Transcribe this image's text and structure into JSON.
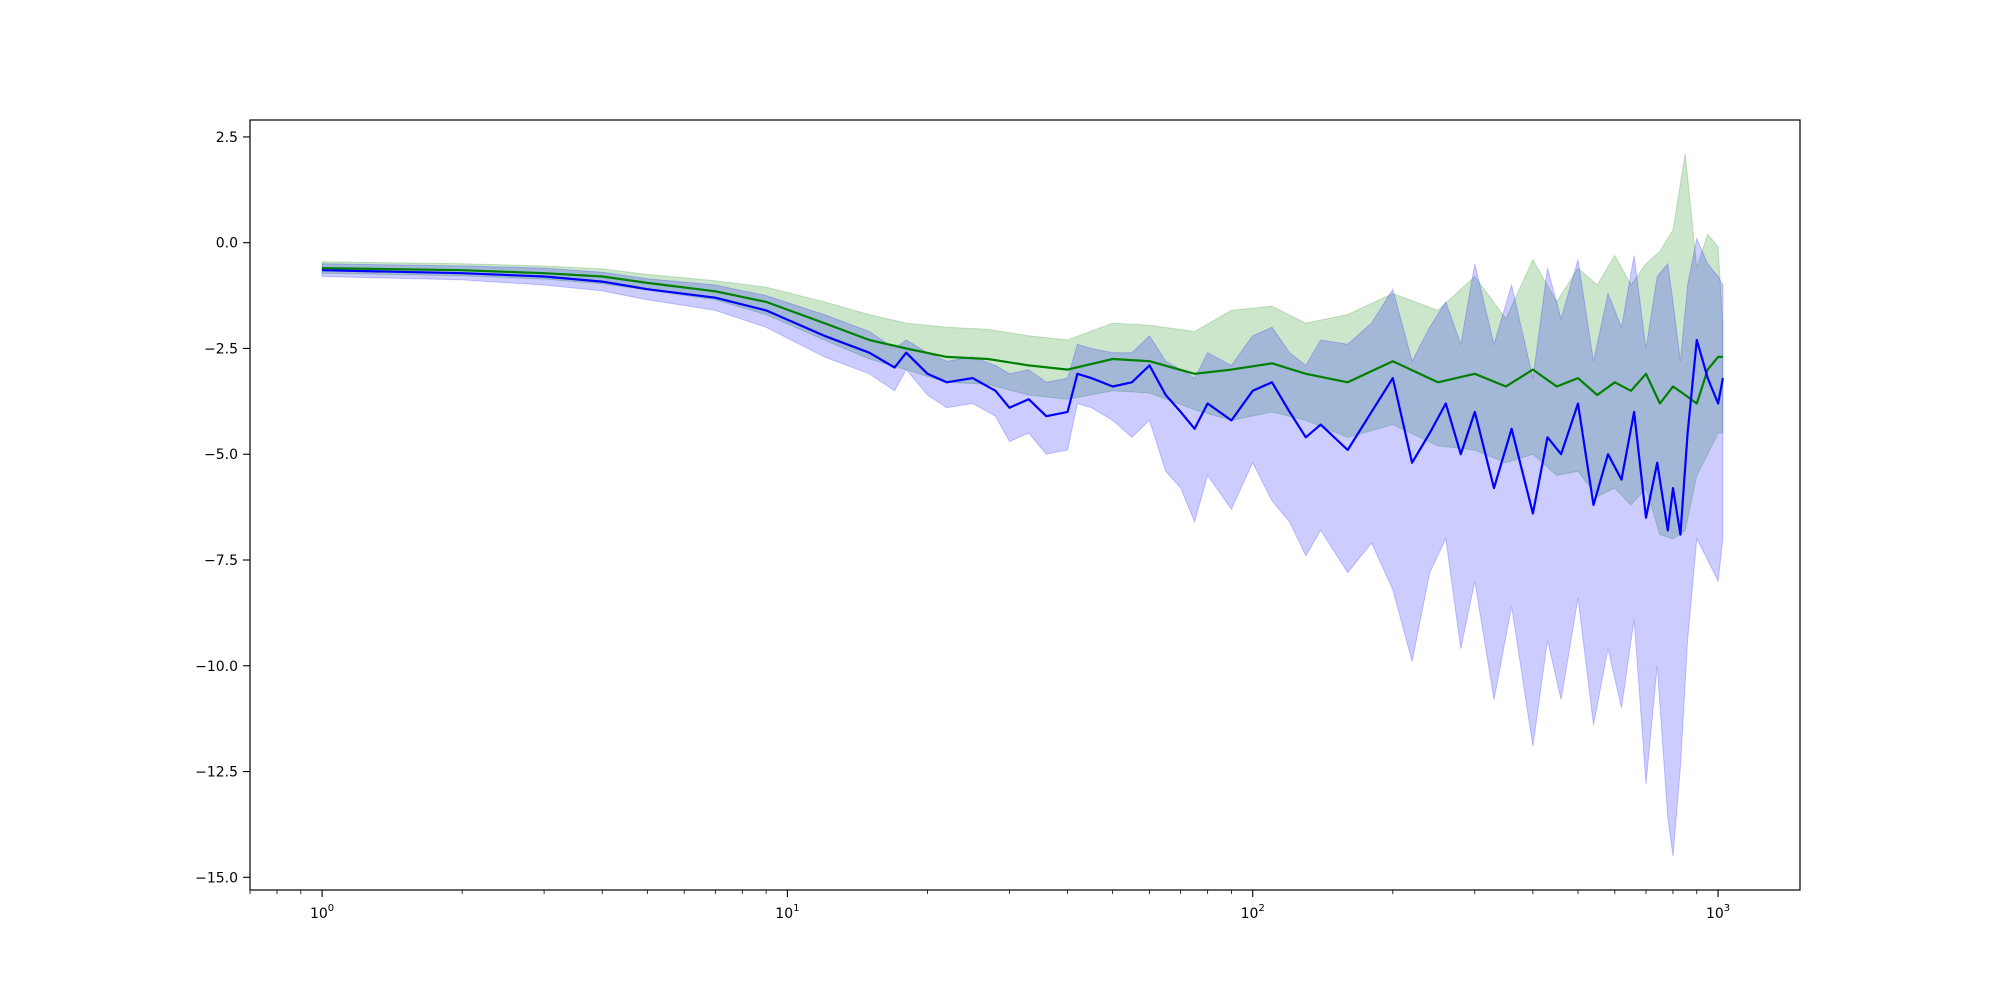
{
  "chart_data": {
    "type": "line",
    "title": "",
    "xlabel": "",
    "ylabel": "",
    "xscale": "log",
    "xlim": [
      0.7,
      1500
    ],
    "ylim": [
      -15.3,
      2.9
    ],
    "grid": false,
    "legend": "none",
    "x_ticks": [
      {
        "value": 1,
        "base": "10",
        "exp": "0"
      },
      {
        "value": 10,
        "base": "10",
        "exp": "1"
      },
      {
        "value": 100,
        "base": "10",
        "exp": "2"
      },
      {
        "value": 1000,
        "base": "10",
        "exp": "3"
      }
    ],
    "y_ticks": [
      {
        "value": 2.5,
        "label": "2.5"
      },
      {
        "value": 0,
        "label": "0.0"
      },
      {
        "value": -2.5,
        "label": "−2.5"
      },
      {
        "value": -5,
        "label": "−5.0"
      },
      {
        "value": -7.5,
        "label": "−7.5"
      },
      {
        "value": -10,
        "label": "−10.0"
      },
      {
        "value": -12.5,
        "label": "−12.5"
      },
      {
        "value": -15,
        "label": "−15.0"
      }
    ],
    "series": [
      {
        "color": "#008000",
        "band_color": "#008000",
        "band_opacity": 0.2,
        "x": [
          1,
          2,
          3,
          4,
          5,
          7,
          9,
          12,
          15,
          18,
          22,
          27,
          33,
          40,
          50,
          60,
          75,
          90,
          110,
          130,
          160,
          200,
          250,
          300,
          350,
          400,
          450,
          500,
          550,
          600,
          650,
          700,
          750,
          800,
          850,
          900,
          950,
          1000,
          1024
        ],
        "y": [
          -0.6,
          -0.65,
          -0.72,
          -0.8,
          -0.95,
          -1.15,
          -1.4,
          -1.9,
          -2.3,
          -2.5,
          -2.7,
          -2.75,
          -2.9,
          -3.0,
          -2.75,
          -2.8,
          -3.1,
          -3.0,
          -2.85,
          -3.1,
          -3.3,
          -2.8,
          -3.3,
          -3.1,
          -3.4,
          -3.0,
          -3.4,
          -3.2,
          -3.6,
          -3.3,
          -3.5,
          -3.1,
          -3.8,
          -3.4,
          -3.6,
          -3.8,
          -3.0,
          -2.7,
          -2.7
        ],
        "upper": [
          -0.45,
          -0.5,
          -0.55,
          -0.62,
          -0.75,
          -0.9,
          -1.05,
          -1.4,
          -1.7,
          -1.9,
          -2.0,
          -2.05,
          -2.2,
          -2.3,
          -1.9,
          -1.95,
          -2.1,
          -1.6,
          -1.5,
          -1.9,
          -1.7,
          -1.2,
          -1.6,
          -0.8,
          -1.8,
          -0.4,
          -1.4,
          -0.6,
          -1.0,
          -0.3,
          -1.0,
          -0.5,
          -0.2,
          0.3,
          2.1,
          -0.6,
          0.2,
          -0.1,
          -2.0
        ],
        "lower": [
          -0.72,
          -0.78,
          -0.86,
          -0.97,
          -1.12,
          -1.35,
          -1.7,
          -2.3,
          -2.75,
          -3.0,
          -3.3,
          -3.35,
          -3.6,
          -3.7,
          -3.5,
          -3.55,
          -3.95,
          -4.2,
          -4.0,
          -4.2,
          -4.6,
          -4.3,
          -4.8,
          -4.9,
          -5.2,
          -5.0,
          -5.5,
          -5.4,
          -6.0,
          -5.8,
          -6.2,
          -5.8,
          -6.9,
          -7.0,
          -6.8,
          -5.5,
          -5.0,
          -4.5,
          -4.5
        ]
      },
      {
        "color": "#0000ff",
        "band_color": "#0000ff",
        "band_opacity": 0.2,
        "x": [
          1,
          2,
          3,
          4,
          5,
          7,
          9,
          12,
          15,
          17,
          18,
          20,
          22,
          25,
          28,
          30,
          33,
          36,
          40,
          42,
          45,
          50,
          55,
          60,
          65,
          70,
          75,
          80,
          90,
          100,
          110,
          120,
          130,
          140,
          160,
          180,
          200,
          220,
          240,
          260,
          280,
          300,
          330,
          360,
          400,
          430,
          460,
          500,
          540,
          580,
          620,
          660,
          700,
          740,
          780,
          800,
          830,
          860,
          900,
          950,
          1000,
          1024
        ],
        "y": [
          -0.65,
          -0.72,
          -0.8,
          -0.92,
          -1.1,
          -1.3,
          -1.6,
          -2.2,
          -2.6,
          -2.95,
          -2.6,
          -3.1,
          -3.3,
          -3.2,
          -3.5,
          -3.9,
          -3.7,
          -4.1,
          -4.0,
          -3.1,
          -3.2,
          -3.4,
          -3.3,
          -2.9,
          -3.6,
          -4.0,
          -4.4,
          -3.8,
          -4.2,
          -3.5,
          -3.3,
          -4.0,
          -4.6,
          -4.3,
          -4.9,
          -4.0,
          -3.2,
          -5.2,
          -4.5,
          -3.8,
          -5.0,
          -4.0,
          -5.8,
          -4.4,
          -6.4,
          -4.6,
          -5.0,
          -3.8,
          -6.2,
          -5.0,
          -5.6,
          -4.0,
          -6.5,
          -5.2,
          -6.8,
          -5.8,
          -6.9,
          -4.5,
          -2.3,
          -3.2,
          -3.8,
          -3.2
        ],
        "upper": [
          -0.5,
          -0.55,
          -0.6,
          -0.7,
          -0.85,
          -1.0,
          -1.25,
          -1.7,
          -2.1,
          -2.5,
          -2.3,
          -2.6,
          -2.8,
          -2.7,
          -2.9,
          -3.1,
          -3.0,
          -3.3,
          -3.2,
          -2.4,
          -2.5,
          -2.6,
          -2.6,
          -2.2,
          -2.8,
          -3.0,
          -3.2,
          -2.6,
          -2.9,
          -2.2,
          -2.0,
          -2.6,
          -2.9,
          -2.3,
          -2.4,
          -1.9,
          -1.1,
          -2.8,
          -2.0,
          -1.4,
          -2.4,
          -0.5,
          -2.4,
          -1.0,
          -3.2,
          -0.6,
          -1.8,
          -0.4,
          -2.8,
          -1.2,
          -2.0,
          -0.3,
          -2.5,
          -0.8,
          -0.5,
          -1.4,
          -2.8,
          -1.0,
          0.1,
          -0.5,
          -0.8,
          -1.0
        ],
        "lower": [
          -0.8,
          -0.88,
          -1.0,
          -1.14,
          -1.35,
          -1.6,
          -2.0,
          -2.7,
          -3.1,
          -3.5,
          -3.0,
          -3.6,
          -3.9,
          -3.8,
          -4.1,
          -4.7,
          -4.5,
          -5.0,
          -4.9,
          -3.8,
          -3.9,
          -4.2,
          -4.6,
          -4.2,
          -5.4,
          -5.8,
          -6.6,
          -5.5,
          -6.3,
          -5.2,
          -6.1,
          -6.6,
          -7.4,
          -6.8,
          -7.8,
          -7.1,
          -8.2,
          -9.9,
          -7.8,
          -7.0,
          -9.6,
          -8.0,
          -10.8,
          -8.6,
          -11.9,
          -9.4,
          -10.8,
          -8.4,
          -11.4,
          -9.6,
          -11.0,
          -8.9,
          -12.8,
          -10.0,
          -13.6,
          -14.5,
          -12.4,
          -9.4,
          -7.0,
          -7.5,
          -8.0,
          -7.0
        ]
      }
    ]
  }
}
